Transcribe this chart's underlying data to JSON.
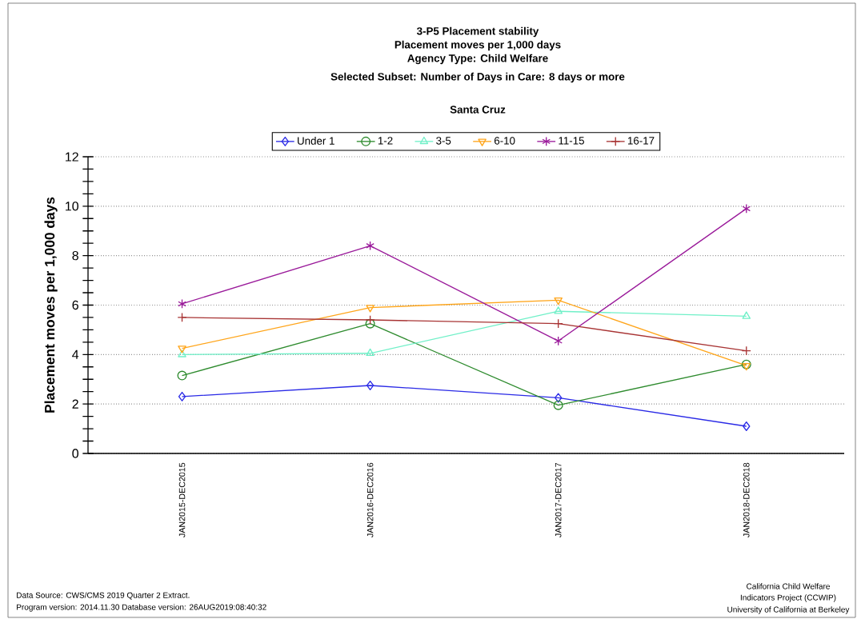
{
  "chart_data": {
    "type": "line",
    "title": "3-P5 Placement stability",
    "subtitle": "Placement moves per 1,000 days",
    "ylabel": "Placement moves per 1,000 days",
    "annotations": [
      "Agency Type: Child Welfare",
      "Selected Subset: Number of Days in Care:  8 days or more",
      "Santa Cruz",
      "Data Source: CWS/CMS 2019 Quarter 2 Extract.",
      "Program version: 2014.11.30 Database version:  26AUG2019:08:40:32",
      "California Child Welfare",
      "Indicators Project (CCWIP)",
      "University of California at Berkeley"
    ],
    "categories": [
      "JAN2015-DEC2015",
      "JAN2016-DEC2016",
      "JAN2017-DEC2017",
      "JAN2018-DEC2018"
    ],
    "series": [
      {
        "name": "Under 1",
        "color": "#2a2ae6",
        "marker": "diamond",
        "values": [
          2.3,
          2.75,
          2.25,
          1.1
        ]
      },
      {
        "name": "1-2",
        "color": "#2e8b2e",
        "marker": "circle",
        "values": [
          3.15,
          5.25,
          1.95,
          3.6
        ]
      },
      {
        "name": "3-5",
        "color": "#70f0c8",
        "marker": "triangle",
        "values": [
          4.0,
          4.05,
          5.75,
          5.55
        ]
      },
      {
        "name": "6-10",
        "color": "#ffa51a",
        "marker": "triangle-down",
        "values": [
          4.25,
          5.9,
          6.2,
          3.55
        ]
      },
      {
        "name": "11-15",
        "color": "#9a1a9a",
        "marker": "cross",
        "values": [
          6.05,
          8.4,
          4.55,
          9.9
        ]
      },
      {
        "name": "16-17",
        "color": "#a83434",
        "marker": "cross",
        "values": [
          5.5,
          5.4,
          5.25,
          4.15
        ]
      }
    ],
    "ylim": [
      0,
      12
    ],
    "yticks": [
      0,
      2,
      4,
      6,
      8,
      10,
      12
    ],
    "grid": "y",
    "legend": "top",
    "line_style": "solid"
  }
}
